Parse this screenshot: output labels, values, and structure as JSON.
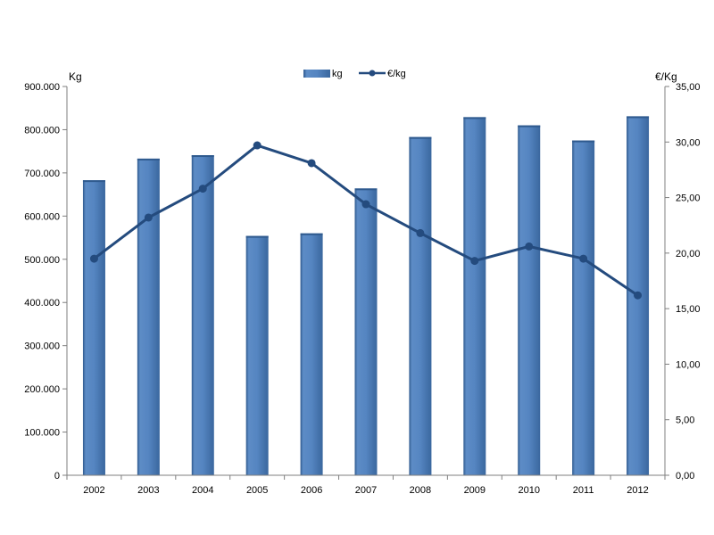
{
  "chart_data": {
    "type": "bar",
    "categories": [
      "2002",
      "2003",
      "2004",
      "2005",
      "2006",
      "2007",
      "2008",
      "2009",
      "2010",
      "2011",
      "2012"
    ],
    "series": [
      {
        "name": "kg",
        "type": "bar",
        "axis": "left",
        "values": [
          683000,
          733000,
          741000,
          554000,
          560000,
          664000,
          783000,
          829000,
          810000,
          775000,
          831000
        ]
      },
      {
        "name": "€/kg",
        "type": "line",
        "axis": "right",
        "values": [
          19.5,
          23.2,
          25.8,
          29.7,
          28.1,
          24.4,
          21.8,
          19.3,
          20.6,
          19.5,
          16.2
        ]
      }
    ],
    "ylabel": "Kg",
    "y2label": "€/Kg",
    "ylim": [
      0,
      900000
    ],
    "y2lim": [
      0,
      35
    ],
    "y_ticks": [
      "0",
      "100.000",
      "200.000",
      "300.000",
      "400.000",
      "500.000",
      "600.000",
      "700.000",
      "800.000",
      "900.000"
    ],
    "y2_ticks": [
      "0,00",
      "5,00",
      "10,00",
      "15,00",
      "20,00",
      "25,00",
      "30,00",
      "35,00"
    ],
    "grid": false,
    "legend_position": "top-center",
    "colors": {
      "bar": "#4f81bd",
      "bar_dark": "#2f5a8e",
      "bar_light": "#7da4d6",
      "line": "#244b7e",
      "axis": "#7f7f7f"
    }
  }
}
